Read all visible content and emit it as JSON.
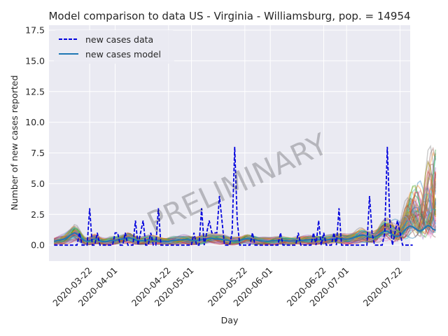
{
  "chart_data": {
    "type": "line",
    "title": "Model comparison to data US - Virginia - Williamsburg, pop. = 14954",
    "xlabel": "Day",
    "ylabel": "Number of new cases reported",
    "x_start_date": "2020-03-08",
    "xlim": [
      "2020-03-06",
      "2020-07-26"
    ],
    "ylim": [
      -1.3,
      17.9
    ],
    "y_ticks": [
      0.0,
      2.5,
      5.0,
      7.5,
      10.0,
      12.5,
      15.0,
      17.5
    ],
    "y_tick_labels": [
      "0.0",
      "2.5",
      "5.0",
      "7.5",
      "10.0",
      "12.5",
      "15.0",
      "17.5"
    ],
    "x_ticks": [
      "2020-03-22",
      "2020-04-01",
      "2020-04-22",
      "2020-05-01",
      "2020-05-22",
      "2020-06-01",
      "2020-06-22",
      "2020-07-01",
      "2020-07-22"
    ],
    "x_tick_labels": [
      "2020-03-22",
      "2020-04-01",
      "2020-04-22",
      "2020-05-01",
      "2020-05-22",
      "2020-06-01",
      "2020-06-22",
      "2020-07-01",
      "2020-07-22"
    ],
    "grid": true,
    "legend_position": "top-left",
    "legend": [
      {
        "label": "new cases data",
        "style": "dashed",
        "color": "#0000dd"
      },
      {
        "label": "new cases model",
        "style": "solid",
        "color": "#1f77b4"
      }
    ],
    "series": [
      {
        "name": "new cases data",
        "color": "#0000dd",
        "style": "dashed",
        "dates_start": "2020-03-08",
        "values": [
          0,
          0,
          0,
          0,
          0,
          0,
          0,
          0,
          0,
          0,
          1,
          0,
          0,
          0,
          3,
          0,
          0,
          1,
          0,
          0,
          0,
          0,
          0,
          0,
          1,
          1,
          0,
          0,
          1,
          0,
          0,
          0,
          2,
          0,
          1,
          2,
          0,
          0,
          1,
          0,
          0,
          3,
          0,
          0,
          0,
          0,
          0,
          0,
          0,
          0,
          0,
          0,
          0,
          0,
          0,
          1,
          0,
          0,
          3,
          0,
          1,
          2,
          1,
          1,
          1,
          4,
          2,
          0,
          0,
          0,
          1,
          8,
          2,
          0,
          0,
          0,
          0,
          0,
          1,
          0,
          0,
          0,
          0,
          0,
          0,
          0,
          0,
          0,
          0,
          1,
          0,
          0,
          0,
          0,
          0,
          0,
          1,
          0,
          0,
          0,
          0,
          0,
          1,
          0,
          2,
          0,
          1,
          0,
          0,
          0,
          1,
          0,
          3,
          0,
          0,
          0,
          0,
          0,
          0,
          0,
          0,
          0,
          0,
          0,
          4,
          1,
          0,
          0,
          0,
          0,
          1,
          8,
          2,
          0,
          1,
          2,
          1,
          0,
          0,
          0,
          0,
          0
        ]
      },
      {
        "name": "new cases model",
        "color": "#1f77b4",
        "style": "solid",
        "dates_start": "2020-03-08",
        "values": [
          0.3,
          0.35,
          0.4,
          0.45,
          0.5,
          0.6,
          0.75,
          0.9,
          1.0,
          0.9,
          0.7,
          0.5,
          0.35,
          0.3,
          0.35,
          0.45,
          0.5,
          0.45,
          0.35,
          0.3,
          0.28,
          0.3,
          0.35,
          0.38,
          0.4,
          0.42,
          0.45,
          0.5,
          0.55,
          0.6,
          0.58,
          0.5,
          0.42,
          0.36,
          0.34,
          0.36,
          0.4,
          0.44,
          0.46,
          0.44,
          0.4,
          0.36,
          0.32,
          0.3,
          0.3,
          0.32,
          0.35,
          0.38,
          0.4,
          0.42,
          0.44,
          0.45,
          0.44,
          0.42,
          0.4,
          0.38,
          0.38,
          0.4,
          0.44,
          0.48,
          0.52,
          0.55,
          0.55,
          0.52,
          0.5,
          0.48,
          0.46,
          0.44,
          0.4,
          0.36,
          0.34,
          0.34,
          0.36,
          0.4,
          0.45,
          0.5,
          0.52,
          0.5,
          0.46,
          0.42,
          0.38,
          0.35,
          0.33,
          0.32,
          0.32,
          0.33,
          0.35,
          0.37,
          0.38,
          0.38,
          0.37,
          0.35,
          0.34,
          0.33,
          0.33,
          0.34,
          0.36,
          0.38,
          0.4,
          0.42,
          0.44,
          0.45,
          0.45,
          0.44,
          0.43,
          0.42,
          0.42,
          0.43,
          0.45,
          0.48,
          0.5,
          0.52,
          0.53,
          0.52,
          0.5,
          0.48,
          0.5,
          0.55,
          0.62,
          0.7,
          0.78,
          0.82,
          0.8,
          0.72,
          0.65,
          0.62,
          0.65,
          0.75,
          0.9,
          1.05,
          1.15,
          1.12,
          1.0,
          0.85,
          0.72,
          0.7,
          0.8,
          1.0,
          1.25,
          1.45,
          1.55,
          1.5,
          1.35,
          1.2,
          1.15,
          1.25,
          1.45,
          1.6,
          1.5,
          1.3,
          1.2
        ]
      }
    ],
    "ensemble_colors": [
      "#1f77b4",
      "#ff7f0e",
      "#2ca02c",
      "#d62728",
      "#9467bd",
      "#8c564b",
      "#e377c2",
      "#bcbd22",
      "#17becf",
      "#7f7f7f"
    ],
    "annotations": [
      "PRELIMINARY"
    ]
  }
}
